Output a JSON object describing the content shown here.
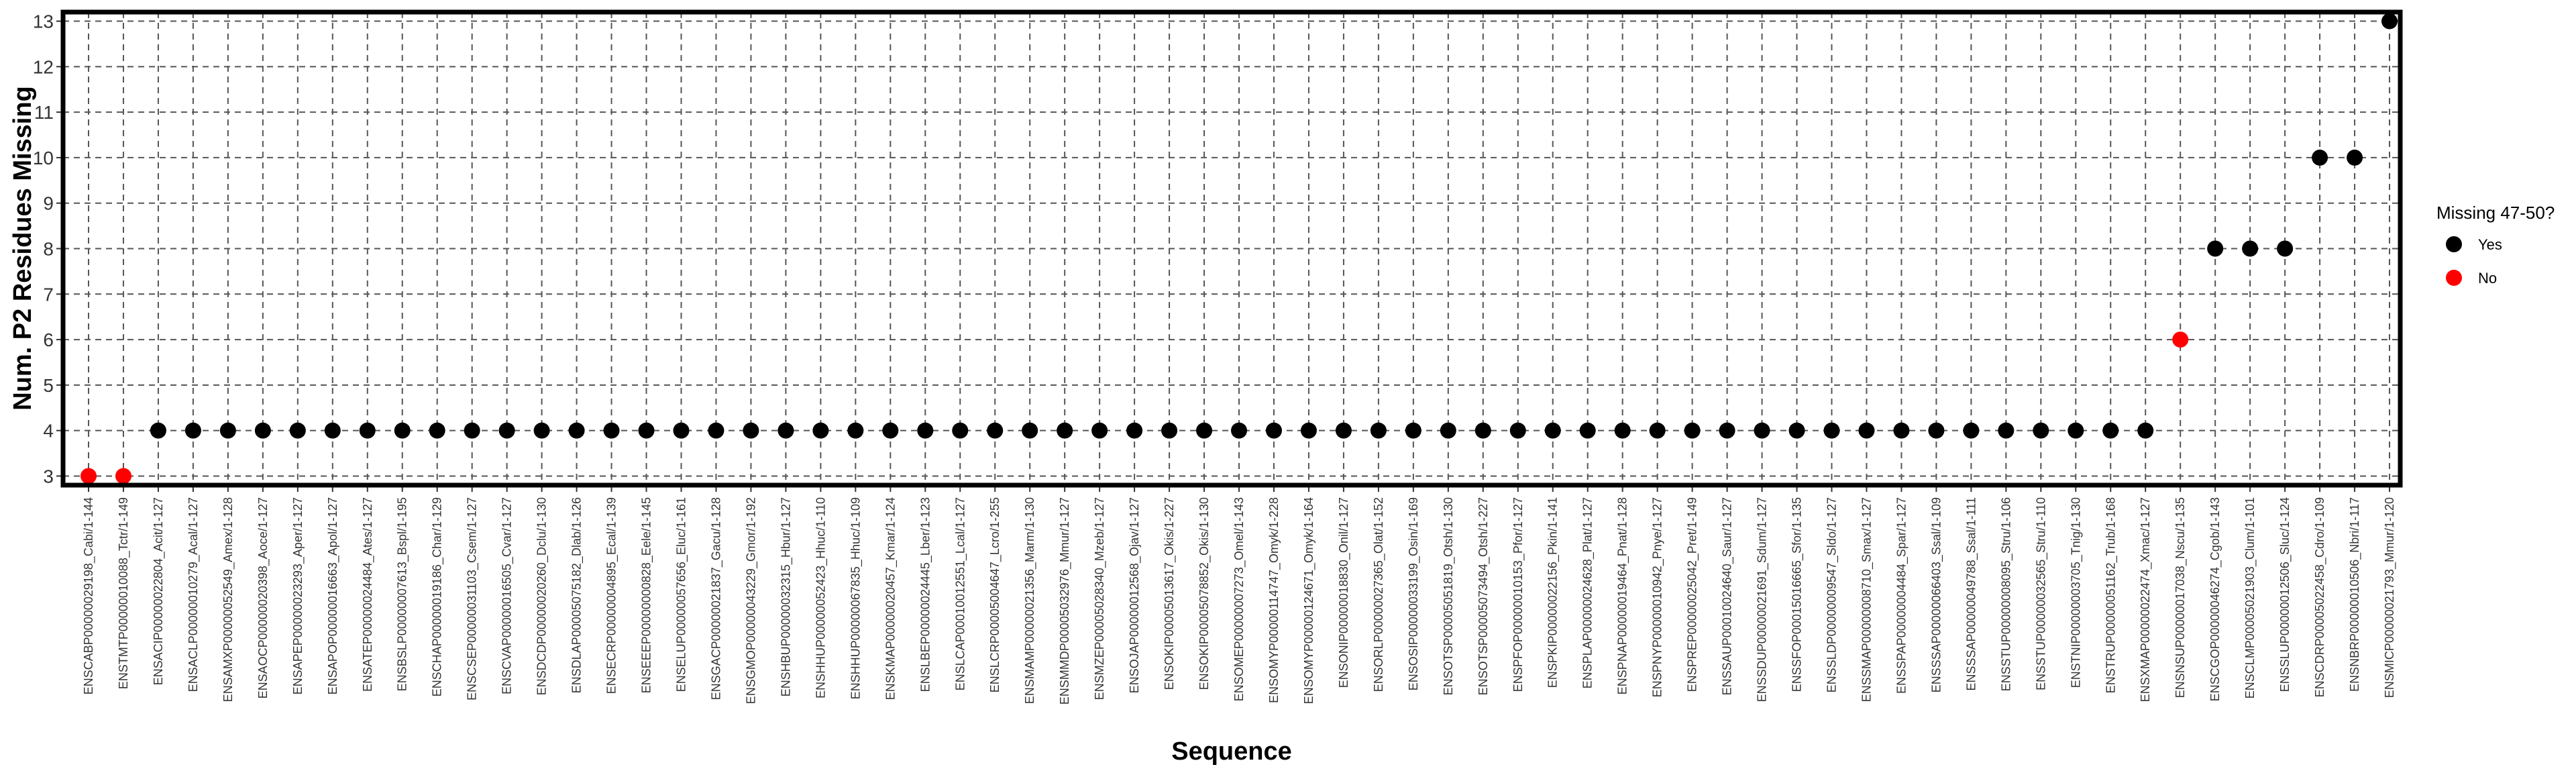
{
  "chart_data": {
    "type": "scatter",
    "xlabel": "Sequence",
    "ylabel": "Num. P2 Residues Missing",
    "ylim": [
      2.8,
      13.2
    ],
    "yticks": [
      3,
      4,
      5,
      6,
      7,
      8,
      9,
      10,
      11,
      12,
      13
    ],
    "grid": true,
    "legend": {
      "title": "Missing 47-50?",
      "position": "right",
      "entries": [
        {
          "label": "Yes",
          "color": "#000000"
        },
        {
          "label": "No",
          "color": "#ff0000"
        }
      ]
    },
    "categories": [
      "ENSCABP00000029198_Cabi/1-144",
      "ENSTMTP00000010088_Tctr/1-149",
      "ENSACIP00000022804_Acit/1-127",
      "ENSACLP00000010279_Acal/1-127",
      "ENSAMXP00000052549_Amex/1-128",
      "ENSAOCP00000020398_Aoce/1-127",
      "ENSAPEP00000023293_Aper/1-127",
      "ENSAPOP00000016663_Apol/1-127",
      "ENSATEP00000024484_Ates/1-127",
      "ENSBSLP00000007613_Bspl/1-195",
      "ENSCHAP00000019186_Char/1-129",
      "ENSCSEP00000031103_Csem/1-127",
      "ENSCVAP00000016505_Cvar/1-127",
      "ENSDCDP00000020260_Dclu/1-130",
      "ENSDLAP00005075182_Dlab/1-126",
      "ENSECRP00000004895_Ecal/1-139",
      "ENSEEEP00000000828_Eele/1-145",
      "ENSELUP00000057656_Eluc/1-161",
      "ENSGACP00000021837_Gacu/1-128",
      "ENSGMOP00000043229_Gmor/1-192",
      "ENSHBUP00000032315_Hbur/1-127",
      "ENSHHUP00000052423_Hhuc/1-110",
      "ENSHHUP00000067835_Hhuc/1-109",
      "ENSKMAP00000020457_Kmar/1-124",
      "ENSLBEP00000024445_Lber/1-123",
      "ENSLCAP00010012551_Lcal/1-127",
      "ENSLCRP00005004647_Lcro/1-255",
      "ENSMAMP00000021356_Marm/1-130",
      "ENSMMDP00005032976_Mmur/1-127",
      "ENSMZEP00005028340_Mzeb/1-127",
      "ENSOJAP00000012568_Ojav/1-127",
      "ENSOKIP00005013617_Okis/1-227",
      "ENSOKIP00005078852_Okis/1-130",
      "ENSOMEP00000007273_Omel/1-143",
      "ENSOMYP00000114747_Omyk/1-228",
      "ENSOMYP00000124671_Omyk/1-164",
      "ENSONIP00000018830_Onil/1-127",
      "ENSORLP00000027365_Olat/1-152",
      "ENSOSIP00000033199_Osin/1-169",
      "ENSOTSP00005051819_Otsh/1-130",
      "ENSOTSP00005073494_Otsh/1-227",
      "ENSPFOP00000010153_Pfor/1-127",
      "ENSPKIP00000022156_Pkin/1-141",
      "ENSPLAP00000024628_Plat/1-127",
      "ENSPNAP00000019464_Pnat/1-128",
      "ENSPNYP00000010942_Pnye/1-127",
      "ENSPREP00000025042_Pret/1-149",
      "ENSSAUP00010024640_Saur/1-127",
      "ENSSDUP00000021691_Sdum/1-127",
      "ENSSFOP00015016665_Sfor/1-135",
      "ENSSLDP00000009547_Sldo/1-127",
      "ENSSMAP00000008710_Smax/1-127",
      "ENSSPAP00000004484_Spar/1-127",
      "ENSSSAP00000066403_Ssal/1-109",
      "ENSSSAP00000049788_Ssal/1-111",
      "ENSSTUP00000008095_Stru/1-106",
      "ENSSTUP00000032565_Stru/1-110",
      "ENSTNIP00000003705_Tnig/1-130",
      "ENSTRUP00000051162_Trub/1-168",
      "ENSXMAP00000022474_Xmac/1-127",
      "ENSNSUP00000017038_Nscu/1-135",
      "ENSCGOP00000046274_Cgob/1-143",
      "ENSCLMP00005021903_Clum/1-101",
      "ENSSLUP00000012506_Sluc/1-124",
      "ENSCDRP00005022458_Cdro/1-109",
      "ENSNBRP00000010506_Nbri/1-117",
      "ENSMICP00000021793_Mmur/1-120"
    ],
    "series": [
      {
        "name": "Missing 47-50?",
        "values": [
          3,
          3,
          4,
          4,
          4,
          4,
          4,
          4,
          4,
          4,
          4,
          4,
          4,
          4,
          4,
          4,
          4,
          4,
          4,
          4,
          4,
          4,
          4,
          4,
          4,
          4,
          4,
          4,
          4,
          4,
          4,
          4,
          4,
          4,
          4,
          4,
          4,
          4,
          4,
          4,
          4,
          4,
          4,
          4,
          4,
          4,
          4,
          4,
          4,
          4,
          4,
          4,
          4,
          4,
          4,
          4,
          4,
          4,
          4,
          4,
          6,
          8,
          8,
          8,
          10,
          10,
          13
        ],
        "groups": [
          "No",
          "No",
          "Yes",
          "Yes",
          "Yes",
          "Yes",
          "Yes",
          "Yes",
          "Yes",
          "Yes",
          "Yes",
          "Yes",
          "Yes",
          "Yes",
          "Yes",
          "Yes",
          "Yes",
          "Yes",
          "Yes",
          "Yes",
          "Yes",
          "Yes",
          "Yes",
          "Yes",
          "Yes",
          "Yes",
          "Yes",
          "Yes",
          "Yes",
          "Yes",
          "Yes",
          "Yes",
          "Yes",
          "Yes",
          "Yes",
          "Yes",
          "Yes",
          "Yes",
          "Yes",
          "Yes",
          "Yes",
          "Yes",
          "Yes",
          "Yes",
          "Yes",
          "Yes",
          "Yes",
          "Yes",
          "Yes",
          "Yes",
          "Yes",
          "Yes",
          "Yes",
          "Yes",
          "Yes",
          "Yes",
          "Yes",
          "Yes",
          "Yes",
          "Yes",
          "No",
          "Yes",
          "Yes",
          "Yes",
          "Yes",
          "Yes",
          "Yes"
        ]
      }
    ]
  }
}
